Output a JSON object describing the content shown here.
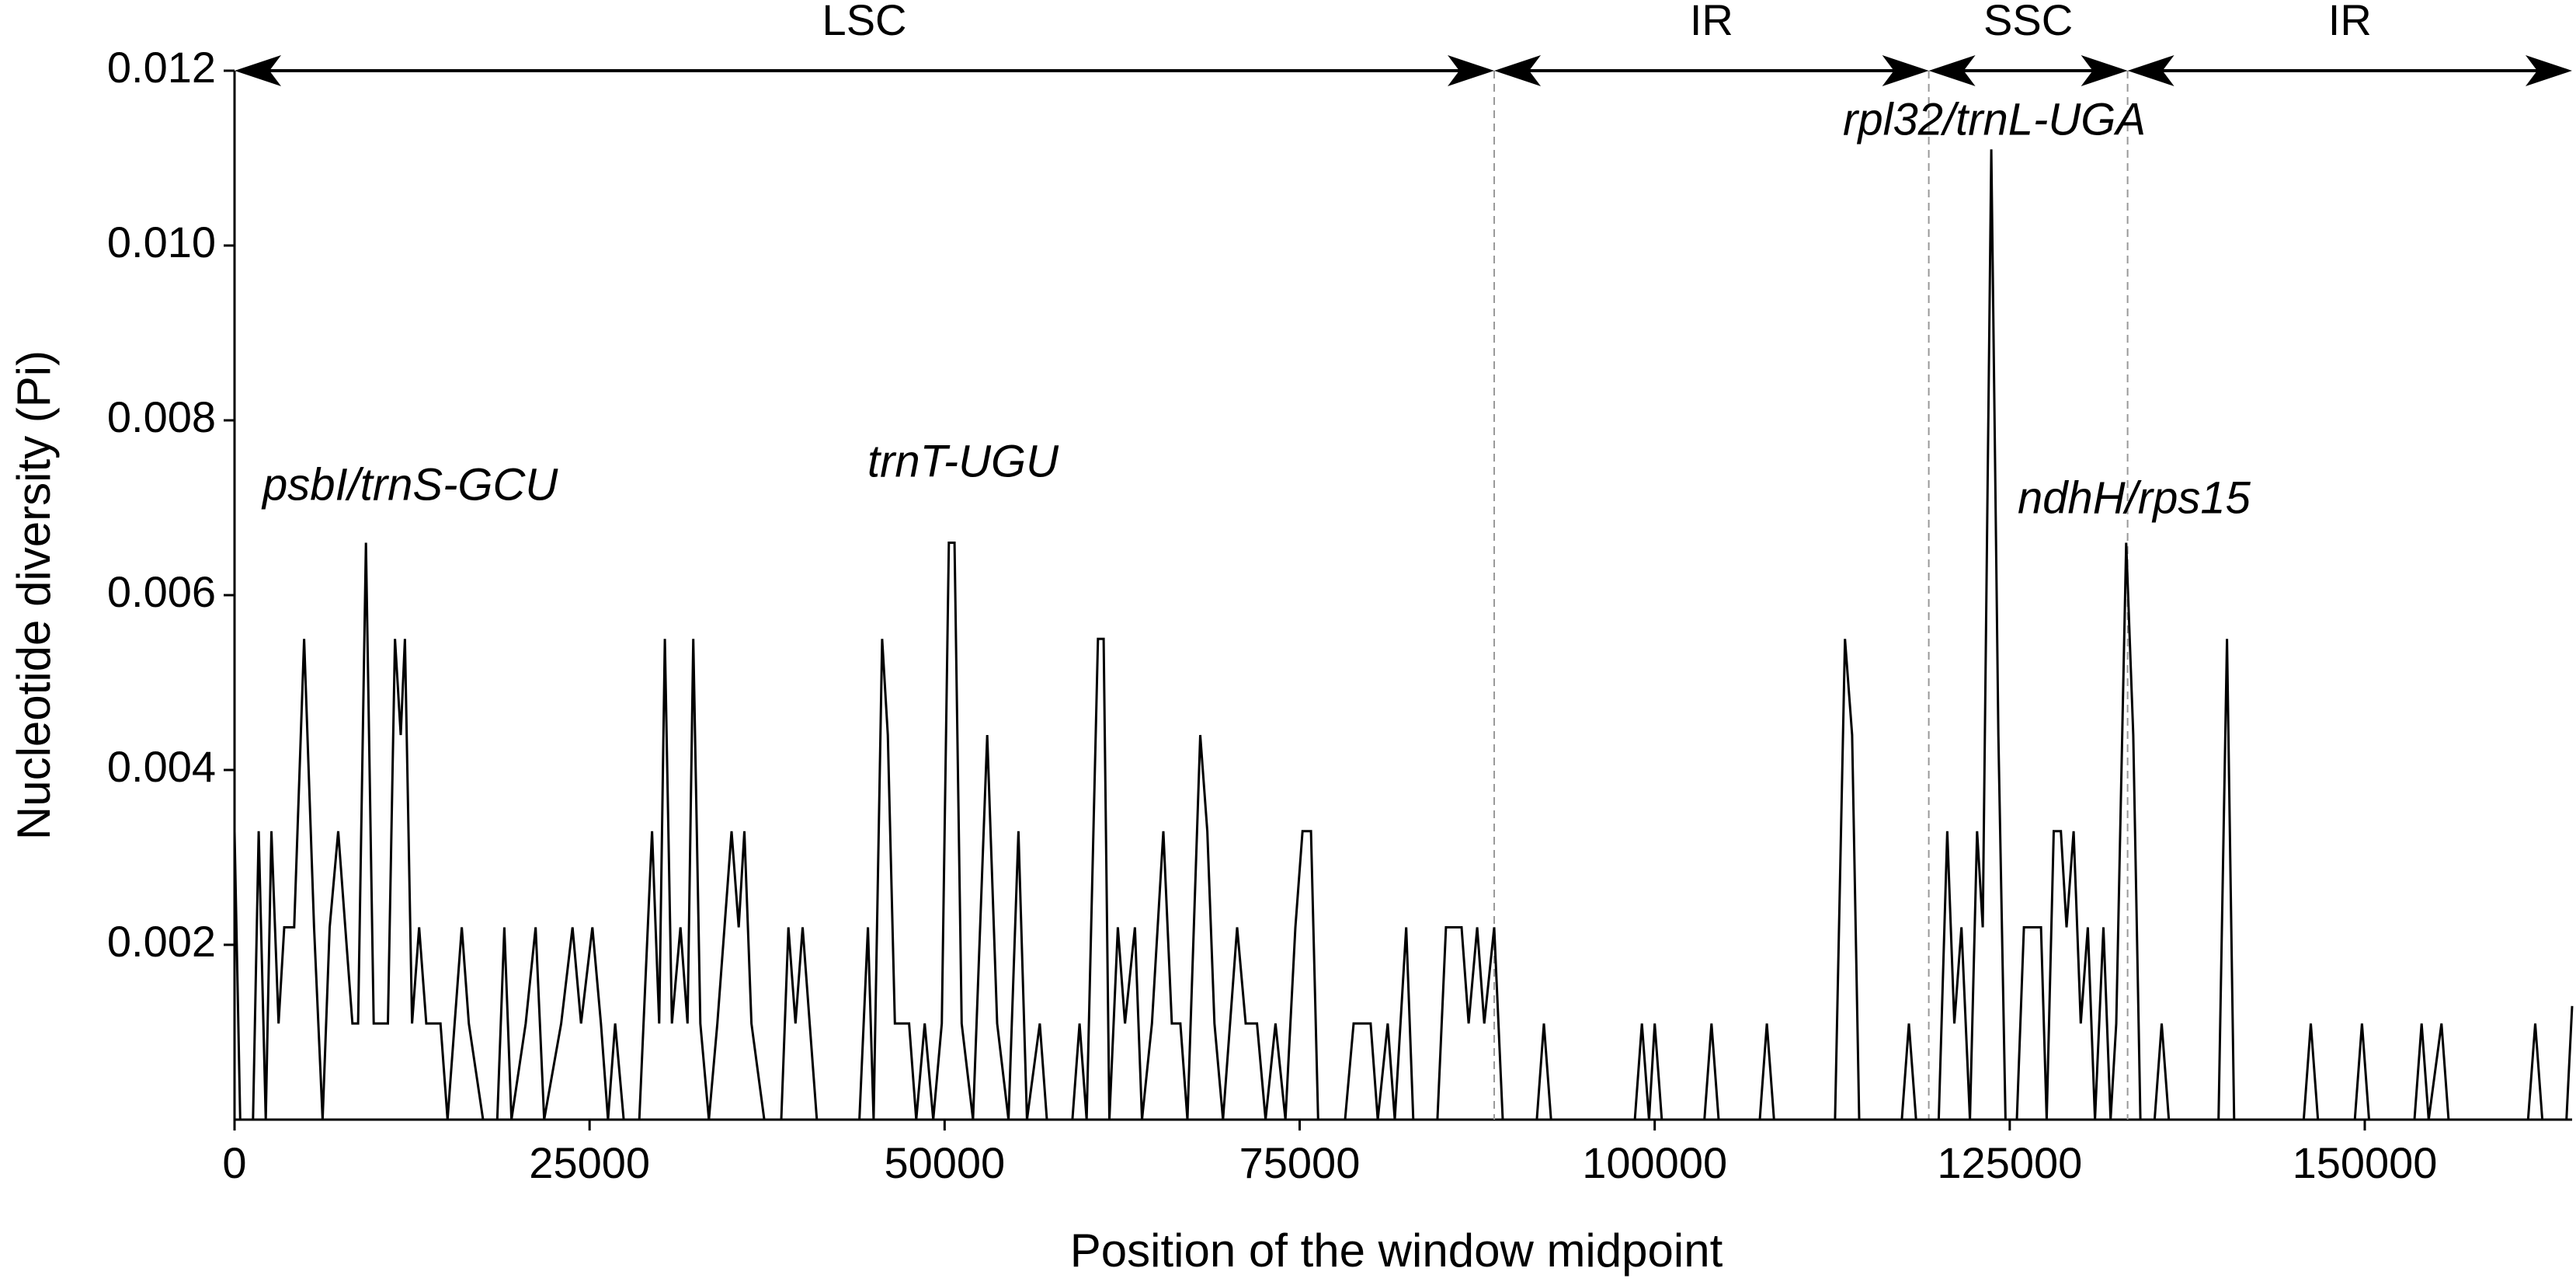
{
  "chart_data": {
    "type": "line",
    "xlabel": "Position of the window midpoint",
    "ylabel": "Nucleotide diversity (Pi)",
    "xlim": [
      0,
      164600
    ],
    "ylim": [
      0,
      0.012
    ],
    "xticks": [
      0,
      25000,
      50000,
      75000,
      100000,
      125000,
      150000
    ],
    "yticks": [
      0.002,
      0.004,
      0.006,
      0.008,
      {
        "value": 0.01,
        "label": "0.010"
      },
      0.012
    ],
    "regions": [
      {
        "label": "LSC",
        "start": 0,
        "end": 88700
      },
      {
        "label": "IR",
        "start": 88700,
        "end": 119300
      },
      {
        "label": "SSC",
        "start": 119300,
        "end": 133300
      },
      {
        "label": "IR",
        "start": 133300,
        "end": 164600
      }
    ],
    "annotations": [
      "psbI/trnS-GCU",
      "trnT-UGU",
      "rpl32/trnL-UGA",
      "ndhH/rps15"
    ],
    "x": [
      0,
      400,
      1300,
      1700,
      2200,
      2600,
      3100,
      3500,
      4200,
      4900,
      5600,
      6200,
      6700,
      7300,
      7800,
      8300,
      8700,
      9250,
      9800,
      10800,
      11300,
      11700,
      12000,
      12500,
      13000,
      13500,
      14500,
      15000,
      15500,
      16000,
      16500,
      17500,
      18500,
      19000,
      19500,
      20500,
      21200,
      21800,
      23000,
      23800,
      24400,
      25200,
      25800,
      26300,
      26800,
      27400,
      28500,
      29400,
      29900,
      30300,
      30800,
      31400,
      31900,
      32300,
      32800,
      33400,
      34000,
      34500,
      35000,
      35500,
      35900,
      36400,
      37300,
      38500,
      39000,
      39500,
      40000,
      40500,
      41000,
      44000,
      44600,
      45000,
      45600,
      46000,
      46500,
      47500,
      48000,
      48600,
      49200,
      49800,
      50300,
      50700,
      51200,
      52000,
      53000,
      53700,
      54500,
      55200,
      55800,
      56700,
      57200,
      59000,
      59500,
      60000,
      60800,
      61200,
      61600,
      62200,
      62700,
      63400,
      63900,
      64600,
      65400,
      66000,
      66600,
      67100,
      68000,
      68500,
      69000,
      69600,
      70600,
      71200,
      72000,
      72600,
      73300,
      74000,
      74700,
      75200,
      75800,
      76300,
      78200,
      78800,
      80000,
      80500,
      81200,
      81700,
      82500,
      83000,
      84700,
      85300,
      86400,
      86900,
      87500,
      88000,
      88700,
      89300,
      91700,
      92200,
      92700,
      98600,
      99100,
      99600,
      100000,
      100500,
      103500,
      104000,
      104500,
      107400,
      107900,
      108400,
      112700,
      113400,
      113900,
      114400,
      117400,
      117900,
      118400,
      120000,
      120600,
      121100,
      121600,
      122200,
      122700,
      123100,
      123700,
      124200,
      124700,
      125500,
      126000,
      127200,
      127600,
      128100,
      128600,
      129000,
      129500,
      130000,
      130500,
      131000,
      131600,
      132100,
      132500,
      133200,
      133700,
      134200,
      135200,
      135700,
      136200,
      139700,
      140300,
      140800,
      145700,
      146200,
      146700,
      149300,
      149800,
      150300,
      153500,
      154000,
      154500,
      155400,
      155900,
      161500,
      162000,
      162500,
      164200,
      164600
    ],
    "series": [
      {
        "color": "#000000",
        "values": [
          0.0033,
          0,
          0,
          0.0033,
          0,
          0.0033,
          0.0011,
          0.0022,
          0.0022,
          0.0055,
          0.0022,
          0,
          0.0022,
          0.0033,
          0.0022,
          0.0011,
          0.0011,
          0.0066,
          0.0011,
          0.0011,
          0.0055,
          0.0044,
          0.0055,
          0.0011,
          0.0022,
          0.0011,
          0.0011,
          0,
          0.0011,
          0.0022,
          0.0011,
          0,
          0,
          0.0022,
          0,
          0.0011,
          0.0022,
          0,
          0.0011,
          0.0022,
          0.0011,
          0.0022,
          0.0011,
          0,
          0.0011,
          0,
          0,
          0.0033,
          0.0011,
          0.0055,
          0.0011,
          0.0022,
          0.0011,
          0.0055,
          0.0011,
          0,
          0.0011,
          0.0022,
          0.0033,
          0.0022,
          0.0033,
          0.0011,
          0,
          0,
          0.0022,
          0.0011,
          0.0022,
          0.0011,
          0,
          0,
          0.0022,
          0,
          0.0055,
          0.0044,
          0.0011,
          0.0011,
          0,
          0.0011,
          0,
          0.0011,
          0.0066,
          0.0066,
          0.0011,
          0,
          0.0044,
          0.0011,
          0,
          0.0033,
          0,
          0.0011,
          0,
          0,
          0.0011,
          0,
          0.0055,
          0.0055,
          0,
          0.0022,
          0.0011,
          0.0022,
          0,
          0.0011,
          0.0033,
          0.0011,
          0.0011,
          0,
          0.0044,
          0.0033,
          0.0011,
          0,
          0.0022,
          0.0011,
          0.0011,
          0,
          0.0011,
          0,
          0.0022,
          0.0033,
          0.0033,
          0,
          0,
          0.0011,
          0.0011,
          0,
          0.0011,
          0,
          0.0022,
          0,
          0,
          0.0022,
          0.0022,
          0.0011,
          0.0022,
          0.0011,
          0.0022,
          0,
          0,
          0.0011,
          0,
          0,
          0.0011,
          0,
          0.0011,
          0,
          0,
          0.0011,
          0,
          0,
          0.0011,
          0,
          0,
          0.0055,
          0.0044,
          0,
          0,
          0.0011,
          0,
          0,
          0.0033,
          0.0011,
          0.0022,
          0,
          0.0033,
          0.0022,
          0.0111,
          0.0044,
          0,
          0,
          0.0022,
          0.0022,
          0,
          0.0033,
          0.0033,
          0.0022,
          0.0033,
          0.0011,
          0.0022,
          0,
          0.0022,
          0,
          0.0011,
          0.0066,
          0.0044,
          0,
          0,
          0.0011,
          0,
          0,
          0.0055,
          0,
          0,
          0.0011,
          0,
          0,
          0.0011,
          0,
          0,
          0.0011,
          0,
          0.0011,
          0,
          0,
          0.0011,
          0,
          0,
          0.0013
        ]
      }
    ]
  }
}
